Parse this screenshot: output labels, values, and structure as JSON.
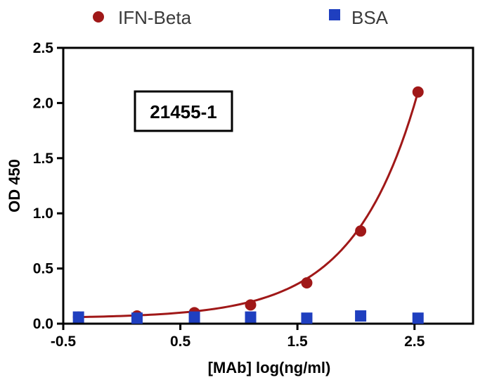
{
  "chart_data": {
    "type": "scatter",
    "title": "",
    "annotation": "21455-1",
    "xlabel": "[MAb] log(ng/ml)",
    "ylabel": "OD 450",
    "xlim": [
      -0.5,
      3.0
    ],
    "ylim": [
      0,
      2.5
    ],
    "x_ticks": [
      -0.5,
      0.5,
      1.5,
      2.5
    ],
    "x_tick_labels": [
      "-0.5",
      "0.5",
      "1.5",
      "2.5"
    ],
    "y_ticks": [
      0,
      0.5,
      1.0,
      1.5,
      2.0,
      2.5
    ],
    "y_tick_labels": [
      "0.0",
      "0.5",
      "1.0",
      "1.5",
      "2.0",
      "2.5"
    ],
    "legend_position": "top",
    "series": [
      {
        "name": "IFN-Beta",
        "color": "#a01818",
        "marker": "circle",
        "fit_curve": true,
        "points": [
          {
            "x": -0.37,
            "y": 0.06
          },
          {
            "x": 0.13,
            "y": 0.07
          },
          {
            "x": 0.62,
            "y": 0.1
          },
          {
            "x": 1.1,
            "y": 0.17
          },
          {
            "x": 1.58,
            "y": 0.37
          },
          {
            "x": 2.04,
            "y": 0.84
          },
          {
            "x": 2.53,
            "y": 2.1
          }
        ]
      },
      {
        "name": "BSA",
        "color": "#1f3fbf",
        "marker": "square",
        "fit_curve": false,
        "points": [
          {
            "x": -0.37,
            "y": 0.06
          },
          {
            "x": 0.13,
            "y": 0.05
          },
          {
            "x": 0.62,
            "y": 0.06
          },
          {
            "x": 1.1,
            "y": 0.06
          },
          {
            "x": 1.58,
            "y": 0.05
          },
          {
            "x": 2.04,
            "y": 0.07
          },
          {
            "x": 2.53,
            "y": 0.05
          }
        ]
      }
    ]
  }
}
